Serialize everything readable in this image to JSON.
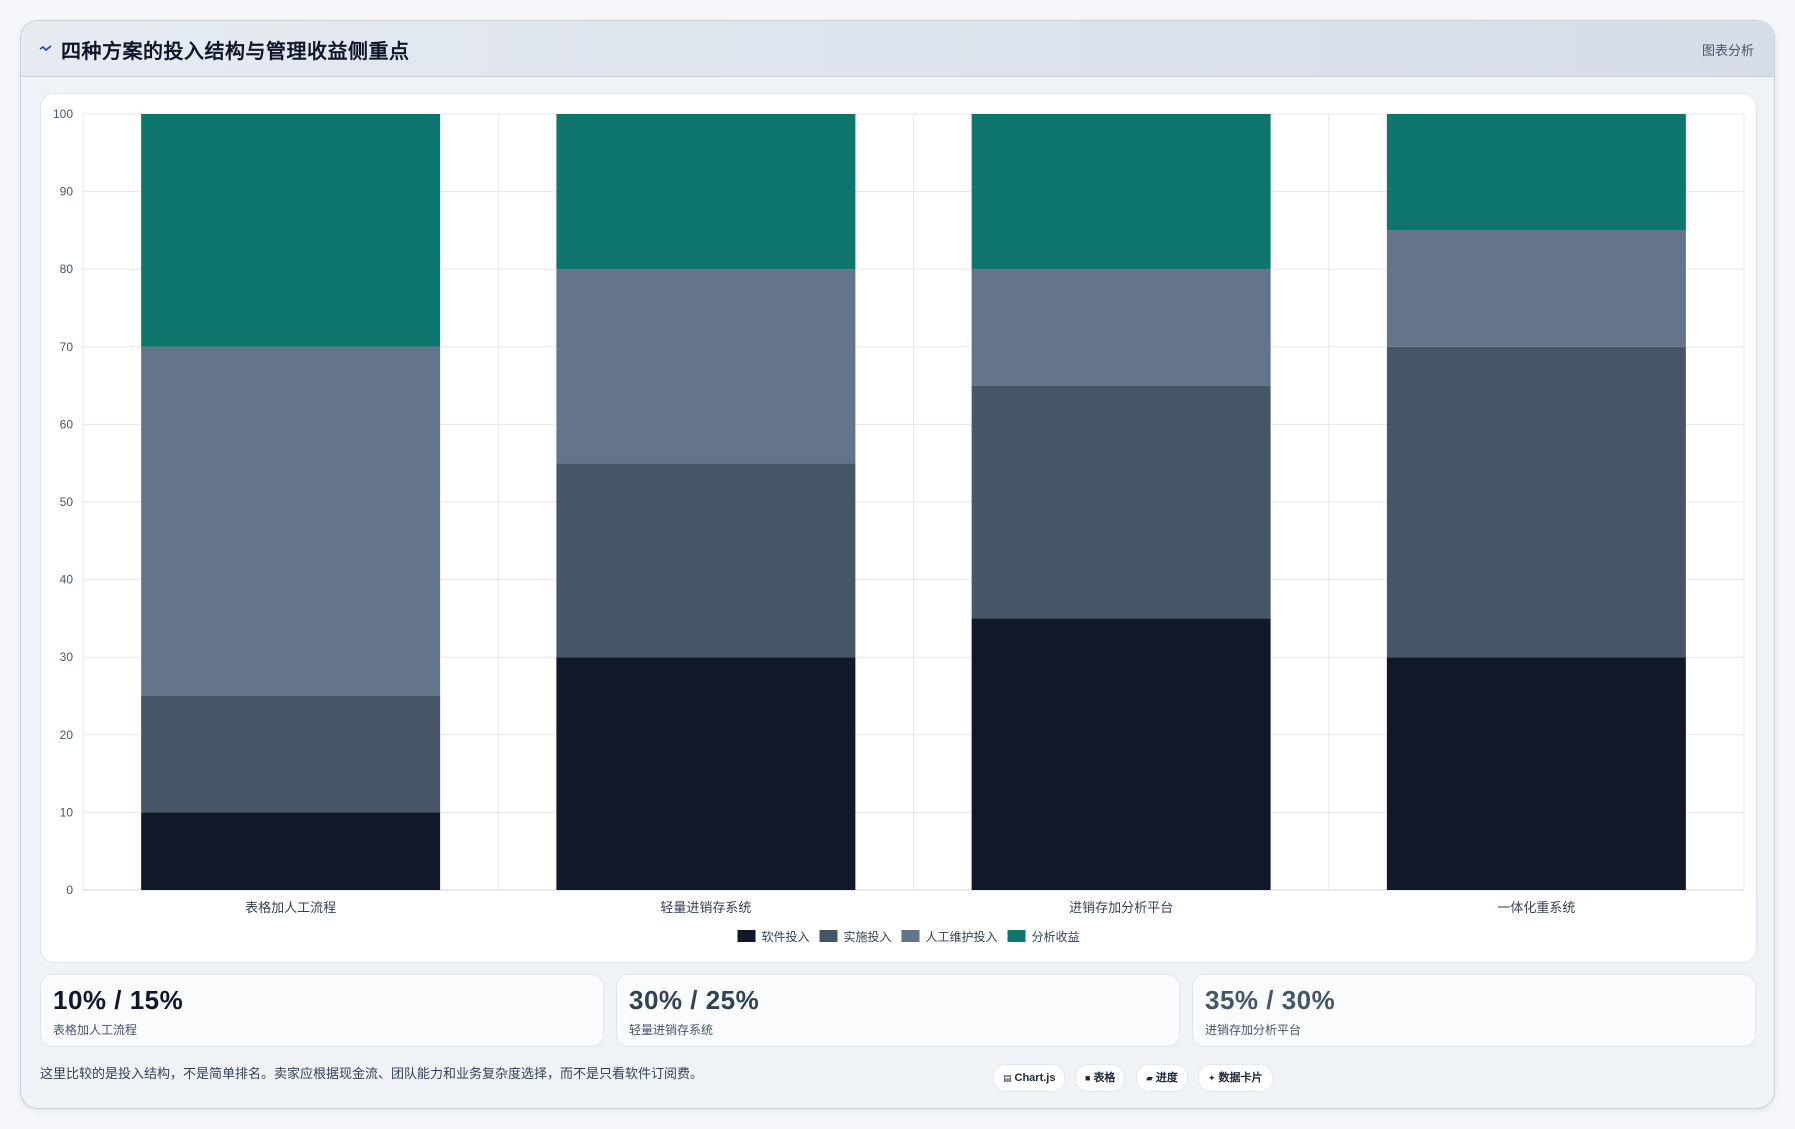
{
  "header": {
    "title": "四种方案的投入结构与管理收益侧重点",
    "right_label": "图表分析"
  },
  "chart_data": {
    "type": "bar",
    "stacked": true,
    "categories": [
      "表格加人工流程",
      "轻量进销存系统",
      "进销存加分析平台",
      "一体化重系统"
    ],
    "series": [
      {
        "name": "软件投入",
        "color": "#111827",
        "values": [
          10,
          30,
          35,
          30
        ]
      },
      {
        "name": "实施投入",
        "color": "#475569",
        "values": [
          15,
          25,
          30,
          40
        ]
      },
      {
        "name": "人工维护投入",
        "color": "#64748b",
        "values": [
          45,
          25,
          15,
          15
        ]
      },
      {
        "name": "分析收益",
        "color": "#0f766e",
        "values": [
          30,
          20,
          20,
          15
        ]
      }
    ],
    "ylim": [
      0,
      100
    ],
    "yticks": [
      0,
      10,
      20,
      30,
      40,
      50,
      60,
      70,
      80,
      90,
      100
    ],
    "grid": true,
    "legend": "bottom-center"
  },
  "stats": [
    {
      "value": "10% / 15%",
      "label": "表格加人工流程",
      "color": "#0f172a"
    },
    {
      "value": "30% / 25%",
      "label": "轻量进销存系统",
      "color": "#334155"
    },
    {
      "value": "35% / 30%",
      "label": "进销存加分析平台",
      "color": "#475569"
    }
  ],
  "footer": {
    "note": "这里比较的是投入结构，不是简单排名。卖家应根据现金流、团队能力和业务复杂度选择，而不是只看软件订阅费。",
    "pills": [
      {
        "icon": "▤",
        "label": "Chart.js"
      },
      {
        "icon": "■",
        "label": "表格"
      },
      {
        "icon": "▰",
        "label": "进度"
      },
      {
        "icon": "✦",
        "label": "数据卡片"
      }
    ]
  }
}
